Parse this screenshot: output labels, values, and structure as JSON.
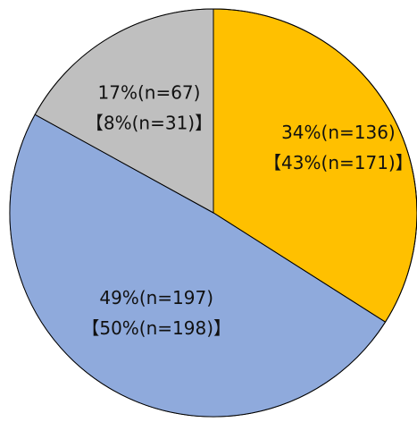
{
  "chart_data": {
    "type": "pie",
    "start_angle": "12 o'clock",
    "direction": "clockwise",
    "slices": [
      {
        "value": 34,
        "label_main": "34%(n=136)",
        "label_sub": "【43%(n=171)】",
        "color": "#FFC000"
      },
      {
        "value": 49,
        "label_main": "49%(n=197)",
        "label_sub": "【50%(n=198)】",
        "color": "#8FAADC"
      },
      {
        "value": 17,
        "label_main": "17%(n=67)",
        "label_sub": "【8%(n=31)】",
        "color": "#BFBFBF"
      }
    ],
    "slice_border_color": "#000000"
  }
}
